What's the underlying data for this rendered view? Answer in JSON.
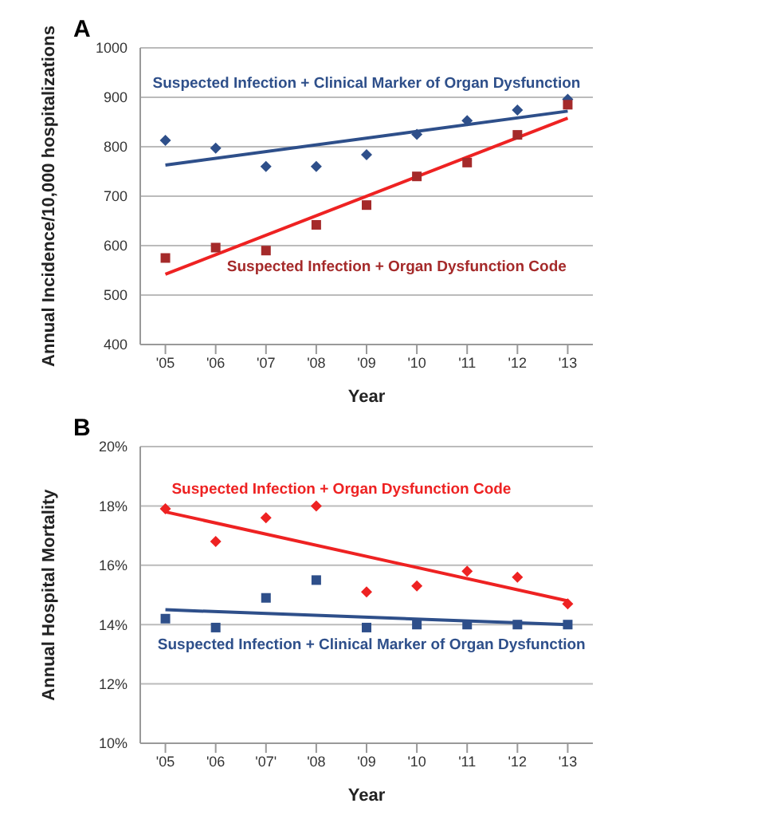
{
  "chart_data": [
    {
      "type": "scatter",
      "title": "A",
      "xlabel": "Year",
      "ylabel": "Annual Incidence/10,000 hospitalizations",
      "categories": [
        "'05",
        "'06",
        "'07",
        "'08",
        "'09",
        "'10",
        "'11",
        "'12",
        "'13"
      ],
      "ylim": [
        400,
        1000
      ],
      "yticks": [
        400,
        500,
        600,
        700,
        800,
        900,
        1000
      ],
      "grid": "y",
      "series": [
        {
          "name": "Suspected Infection + Clinical Marker of Organ Dysfunction",
          "color": "#2e4f8a",
          "marker": "diamond",
          "values": [
            813,
            797,
            760,
            760,
            784,
            825,
            853,
            874,
            896
          ]
        },
        {
          "name": "Suspected Infection + Organ Dysfunction Code",
          "color": "#a52a2a",
          "marker": "square",
          "values": [
            575,
            596,
            590,
            642,
            682,
            740,
            768,
            824,
            885
          ]
        },
        {
          "type": "line",
          "color": "#2e4f8a",
          "x": [
            "'05",
            "'13"
          ],
          "values": [
            763,
            872
          ]
        },
        {
          "type": "line",
          "color": "#ee2222",
          "x": [
            "'05",
            "'13"
          ],
          "values": [
            542,
            858
          ]
        }
      ]
    },
    {
      "type": "scatter",
      "title": "B",
      "xlabel": "Year",
      "ylabel": "Annual Hospital Mortality",
      "categories": [
        "'05",
        "'06",
        "'07'",
        "'08",
        "'09",
        "'10",
        "'11",
        "'12",
        "'13"
      ],
      "ylim": [
        10,
        20
      ],
      "yticks": [
        {
          "value": 10,
          "label": "10%"
        },
        {
          "value": 12,
          "label": "12%"
        },
        {
          "value": 14,
          "label": "14%"
        },
        {
          "value": 16,
          "label": "16%"
        },
        {
          "value": 18,
          "label": "18%"
        },
        {
          "value": 20,
          "label": "20%"
        }
      ],
      "grid": "y",
      "series": [
        {
          "name": "Suspected Infection + Organ Dysfunction Code",
          "color": "#ee2222",
          "marker": "diamond",
          "values": [
            17.9,
            16.8,
            17.6,
            18.0,
            15.1,
            15.3,
            15.8,
            15.6,
            14.7
          ]
        },
        {
          "name": "Suspected Infection + Clinical Marker of Organ Dysfunction",
          "color": "#2e4f8a",
          "marker": "square",
          "values": [
            14.2,
            13.9,
            14.9,
            15.5,
            13.9,
            14.0,
            14.0,
            14.0,
            14.0
          ]
        },
        {
          "type": "line",
          "color": "#ee2222",
          "x": [
            "'05",
            "'13"
          ],
          "values": [
            17.8,
            14.8
          ]
        },
        {
          "type": "line",
          "color": "#2e4f8a",
          "x": [
            "'05",
            "'13"
          ],
          "values": [
            14.5,
            14.0
          ]
        }
      ]
    }
  ]
}
